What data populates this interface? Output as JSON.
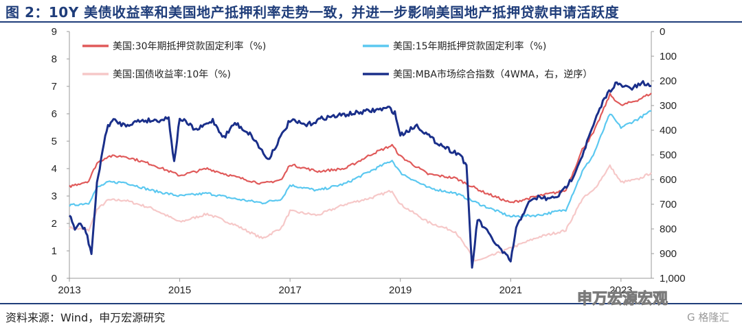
{
  "header": {
    "title": "图 2：10Y 美债收益率和美国地产抵押利率走势一致，并进一步影响美国地产抵押贷款申请活跃度"
  },
  "footer": {
    "source": "资料来源：Wind，申万宏源研究",
    "watermark": "申万宏源宏观",
    "watermark2": "G 格隆汇"
  },
  "chart_data": {
    "type": "line",
    "x_tick_labels": [
      "2013",
      "2015",
      "2017",
      "2019",
      "2021",
      "2023"
    ],
    "x_range": [
      2013.0,
      2023.55
    ],
    "left_axis": {
      "range": [
        0,
        9
      ],
      "tick_labels": [
        "0",
        "1",
        "2",
        "3",
        "4",
        "5",
        "6",
        "7",
        "8",
        "9"
      ]
    },
    "right_axis": {
      "range": [
        0,
        1000
      ],
      "inverted": true,
      "tick_labels": [
        "0",
        "100",
        "200",
        "300",
        "400",
        "500",
        "600",
        "700",
        "800",
        "900",
        "1,000"
      ]
    },
    "grid": false,
    "legend_position": "top, two columns",
    "series": [
      {
        "name": "美国:30年期抵押贷款固定利率（%)",
        "axis": "left",
        "color": "#e05a5a",
        "x": [
          2013.0,
          2013.35,
          2013.5,
          2013.7,
          2014.0,
          2014.5,
          2015.0,
          2015.5,
          2016.0,
          2016.5,
          2016.85,
          2017.0,
          2017.5,
          2018.0,
          2018.5,
          2018.85,
          2019.0,
          2019.5,
          2020.0,
          2020.5,
          2021.0,
          2021.5,
          2022.0,
          2022.3,
          2022.5,
          2022.8,
          2023.0,
          2023.3,
          2023.55
        ],
        "y": [
          3.35,
          3.55,
          4.2,
          4.45,
          4.45,
          4.15,
          3.75,
          4.0,
          3.7,
          3.45,
          3.6,
          4.15,
          3.9,
          4.0,
          4.55,
          4.85,
          4.45,
          3.8,
          3.65,
          3.15,
          2.75,
          3.0,
          3.2,
          4.7,
          5.3,
          6.7,
          6.3,
          6.5,
          6.75
        ]
      },
      {
        "name": "美国:15年期抵押贷款固定利率（%)",
        "axis": "left",
        "color": "#5bc8f0",
        "x": [
          2013.0,
          2013.35,
          2013.5,
          2013.7,
          2014.0,
          2014.5,
          2015.0,
          2015.5,
          2016.0,
          2016.5,
          2016.85,
          2017.0,
          2017.5,
          2018.0,
          2018.5,
          2018.85,
          2019.0,
          2019.5,
          2020.0,
          2020.5,
          2021.0,
          2021.5,
          2022.0,
          2022.3,
          2022.5,
          2022.8,
          2023.0,
          2023.3,
          2023.55
        ],
        "y": [
          2.65,
          2.75,
          3.3,
          3.5,
          3.5,
          3.2,
          3.0,
          3.1,
          2.9,
          2.75,
          2.9,
          3.4,
          3.2,
          3.45,
          3.95,
          4.3,
          3.85,
          3.3,
          3.1,
          2.65,
          2.25,
          2.3,
          2.5,
          3.9,
          4.5,
          6.0,
          5.5,
          5.8,
          6.1
        ]
      },
      {
        "name": "美国:国债收益率:10年（%)",
        "axis": "left",
        "color": "#f6c8c8",
        "x": [
          2013.0,
          2013.35,
          2013.5,
          2013.7,
          2014.0,
          2014.5,
          2015.0,
          2015.5,
          2016.0,
          2016.5,
          2016.85,
          2017.0,
          2017.5,
          2018.0,
          2018.5,
          2018.85,
          2019.0,
          2019.5,
          2020.0,
          2020.2,
          2020.35,
          2020.5,
          2021.0,
          2021.5,
          2022.0,
          2022.3,
          2022.5,
          2022.8,
          2023.0,
          2023.3,
          2023.55
        ],
        "y": [
          1.85,
          1.75,
          2.5,
          2.85,
          2.85,
          2.55,
          2.05,
          2.35,
          1.95,
          1.45,
          1.85,
          2.45,
          2.3,
          2.7,
          2.95,
          3.2,
          2.7,
          2.05,
          1.7,
          1.1,
          0.65,
          0.7,
          1.1,
          1.5,
          1.75,
          2.9,
          3.2,
          4.1,
          3.5,
          3.6,
          3.85
        ]
      },
      {
        "name": "美国:MBA市场综合指数（4WMA，右，逆序）",
        "axis": "right",
        "color": "#1a2f8a",
        "x": [
          2013.0,
          2013.1,
          2013.2,
          2013.3,
          2013.4,
          2013.5,
          2013.6,
          2013.7,
          2013.8,
          2014.0,
          2014.3,
          2014.6,
          2014.8,
          2014.9,
          2015.0,
          2015.3,
          2015.6,
          2015.8,
          2016.0,
          2016.3,
          2016.6,
          2016.8,
          2017.0,
          2017.3,
          2017.6,
          2017.9,
          2018.2,
          2018.5,
          2018.8,
          2018.9,
          2019.0,
          2019.3,
          2019.6,
          2019.9,
          2020.1,
          2020.2,
          2020.3,
          2020.4,
          2020.6,
          2020.8,
          2021.0,
          2021.1,
          2021.3,
          2021.5,
          2021.7,
          2021.9,
          2022.1,
          2022.3,
          2022.5,
          2022.7,
          2022.9,
          2023.0,
          2023.2,
          2023.4,
          2023.55
        ],
        "y": [
          740,
          800,
          780,
          810,
          900,
          620,
          480,
          380,
          360,
          380,
          360,
          360,
          350,
          530,
          350,
          400,
          360,
          430,
          370,
          420,
          520,
          440,
          360,
          380,
          350,
          340,
          330,
          320,
          310,
          330,
          420,
          380,
          440,
          480,
          500,
          550,
          960,
          760,
          820,
          880,
          930,
          800,
          700,
          670,
          680,
          660,
          600,
          500,
          380,
          270,
          210,
          220,
          230,
          210,
          220
        ]
      }
    ]
  }
}
